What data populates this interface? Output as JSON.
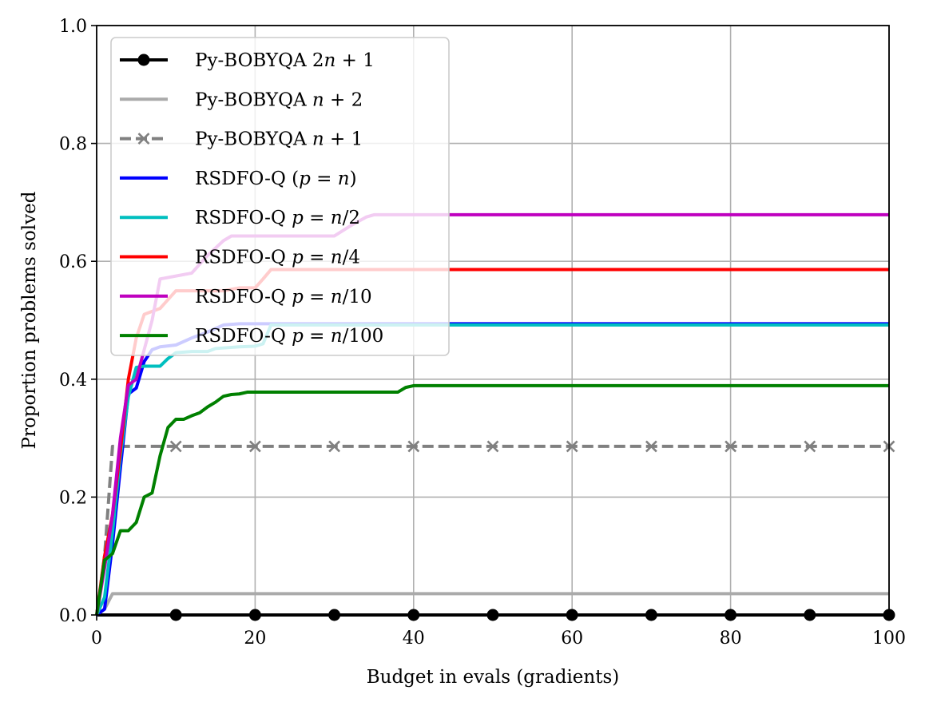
{
  "chart_data": {
    "type": "line",
    "title": "",
    "xlabel": "Budget in evals (gradients)",
    "ylabel": "Proportion problems solved",
    "xlim": [
      0,
      100
    ],
    "ylim": [
      0,
      1
    ],
    "xticks": [
      0,
      20,
      40,
      60,
      80,
      100
    ],
    "yticks": [
      0.0,
      0.2,
      0.4,
      0.6,
      0.8,
      1.0
    ],
    "xtick_labels": [
      "0",
      "20",
      "40",
      "60",
      "80",
      "100"
    ],
    "ytick_labels": [
      "0.0",
      "0.2",
      "0.4",
      "0.6",
      "0.8",
      "1.0"
    ],
    "grid": true,
    "legend_position": "top-left",
    "series": [
      {
        "name": "Py-BOBYQA 2n + 1",
        "legend_parts": [
          [
            "Py-BOBYQA ",
            "normal"
          ],
          [
            "2",
            "normal"
          ],
          [
            "n",
            "italic"
          ],
          [
            " + 1",
            "normal"
          ]
        ],
        "color": "#000000",
        "dash": "solid",
        "marker": "circle",
        "markers_at": [
          10,
          20,
          30,
          40,
          50,
          60,
          70,
          80,
          90,
          100
        ],
        "x": [
          0,
          100
        ],
        "y": [
          0,
          0
        ]
      },
      {
        "name": "Py-BOBYQA n + 2",
        "legend_parts": [
          [
            "Py-BOBYQA ",
            "normal"
          ],
          [
            "n",
            "italic"
          ],
          [
            " + 2",
            "normal"
          ]
        ],
        "color": "#aaaaaa",
        "dash": "solid",
        "marker": "none",
        "x": [
          0,
          1,
          2,
          100
        ],
        "y": [
          0,
          0.01,
          0.036,
          0.036
        ]
      },
      {
        "name": "Py-BOBYQA n + 1",
        "legend_parts": [
          [
            "Py-BOBYQA ",
            "normal"
          ],
          [
            "n",
            "italic"
          ],
          [
            " + 1",
            "normal"
          ]
        ],
        "color": "#808080",
        "dash": "dashed",
        "marker": "x",
        "markers_at": [
          10,
          20,
          30,
          40,
          50,
          60,
          70,
          80,
          90,
          100
        ],
        "x": [
          0,
          1,
          2,
          100
        ],
        "y": [
          0,
          0.1,
          0.286,
          0.286
        ]
      },
      {
        "name": "RSDFO-Q (p = n)",
        "legend_parts": [
          [
            "RSDFO-Q (",
            "normal"
          ],
          [
            "p",
            "italic"
          ],
          [
            " = ",
            "normal"
          ],
          [
            "n",
            "italic"
          ],
          [
            ")",
            "normal"
          ]
        ],
        "color": "#0000ff",
        "dash": "solid",
        "marker": "none",
        "x": [
          0,
          1,
          2,
          3,
          4,
          5,
          6,
          7,
          8,
          10,
          12,
          14,
          16,
          18,
          20,
          22,
          100
        ],
        "y": [
          0,
          0.01,
          0.12,
          0.25,
          0.375,
          0.385,
          0.43,
          0.45,
          0.455,
          0.458,
          0.47,
          0.48,
          0.492,
          0.494,
          0.494,
          0.494,
          0.494
        ]
      },
      {
        "name": "RSDFO-Q p = n/2",
        "legend_parts": [
          [
            "RSDFO-Q ",
            "normal"
          ],
          [
            "p",
            "italic"
          ],
          [
            " = ",
            "normal"
          ],
          [
            "n",
            "italic"
          ],
          [
            "/2",
            "normal"
          ]
        ],
        "color": "#00bfbf",
        "dash": "solid",
        "marker": "none",
        "x": [
          0,
          1,
          2,
          3,
          4,
          5,
          6,
          7,
          8,
          9,
          10,
          12,
          14,
          15,
          16,
          18,
          20,
          21,
          22,
          100
        ],
        "y": [
          0,
          0.03,
          0.14,
          0.27,
          0.37,
          0.42,
          0.422,
          0.422,
          0.422,
          0.435,
          0.445,
          0.447,
          0.447,
          0.452,
          0.453,
          0.455,
          0.456,
          0.46,
          0.492,
          0.492
        ]
      },
      {
        "name": "RSDFO-Q p = n/4",
        "legend_parts": [
          [
            "RSDFO-Q ",
            "normal"
          ],
          [
            "p",
            "italic"
          ],
          [
            " = ",
            "normal"
          ],
          [
            "n",
            "italic"
          ],
          [
            "/4",
            "normal"
          ]
        ],
        "color": "#ff0000",
        "dash": "solid",
        "marker": "none",
        "x": [
          0,
          1,
          2,
          3,
          4,
          5,
          6,
          7,
          8,
          9,
          10,
          12,
          14,
          16,
          18,
          20,
          21,
          22,
          100
        ],
        "y": [
          0,
          0.1,
          0.17,
          0.28,
          0.4,
          0.47,
          0.51,
          0.515,
          0.52,
          0.535,
          0.55,
          0.55,
          0.55,
          0.55,
          0.555,
          0.555,
          0.57,
          0.586,
          0.586
        ]
      },
      {
        "name": "RSDFO-Q p = n/10",
        "legend_parts": [
          [
            "RSDFO-Q ",
            "normal"
          ],
          [
            "p",
            "italic"
          ],
          [
            " = ",
            "normal"
          ],
          [
            "n",
            "italic"
          ],
          [
            "/10",
            "normal"
          ]
        ],
        "color": "#bf00bf",
        "dash": "solid",
        "marker": "none",
        "x": [
          0,
          1,
          2,
          3,
          4,
          5,
          6,
          7,
          8,
          10,
          12,
          14,
          16,
          17,
          20,
          25,
          30,
          32,
          34,
          35,
          100
        ],
        "y": [
          0,
          0.08,
          0.17,
          0.3,
          0.39,
          0.4,
          0.45,
          0.5,
          0.57,
          0.575,
          0.58,
          0.61,
          0.635,
          0.643,
          0.643,
          0.643,
          0.643,
          0.66,
          0.675,
          0.679,
          0.679
        ]
      },
      {
        "name": "RSDFO-Q p = n/100",
        "legend_parts": [
          [
            "RSDFO-Q ",
            "normal"
          ],
          [
            "p",
            "italic"
          ],
          [
            " = ",
            "normal"
          ],
          [
            "n",
            "italic"
          ],
          [
            "/100",
            "normal"
          ]
        ],
        "color": "#008000",
        "dash": "solid",
        "marker": "none",
        "x": [
          0,
          1,
          2,
          3,
          4,
          5,
          6,
          7,
          8,
          9,
          10,
          11,
          12,
          13,
          14,
          15,
          16,
          17,
          18,
          19,
          20,
          25,
          30,
          35,
          38,
          39,
          40,
          45,
          100
        ],
        "y": [
          0,
          0.093,
          0.104,
          0.143,
          0.143,
          0.157,
          0.2,
          0.207,
          0.27,
          0.318,
          0.332,
          0.332,
          0.338,
          0.343,
          0.353,
          0.361,
          0.371,
          0.374,
          0.375,
          0.378,
          0.378,
          0.378,
          0.378,
          0.378,
          0.378,
          0.386,
          0.389,
          0.389,
          0.389
        ]
      }
    ]
  }
}
